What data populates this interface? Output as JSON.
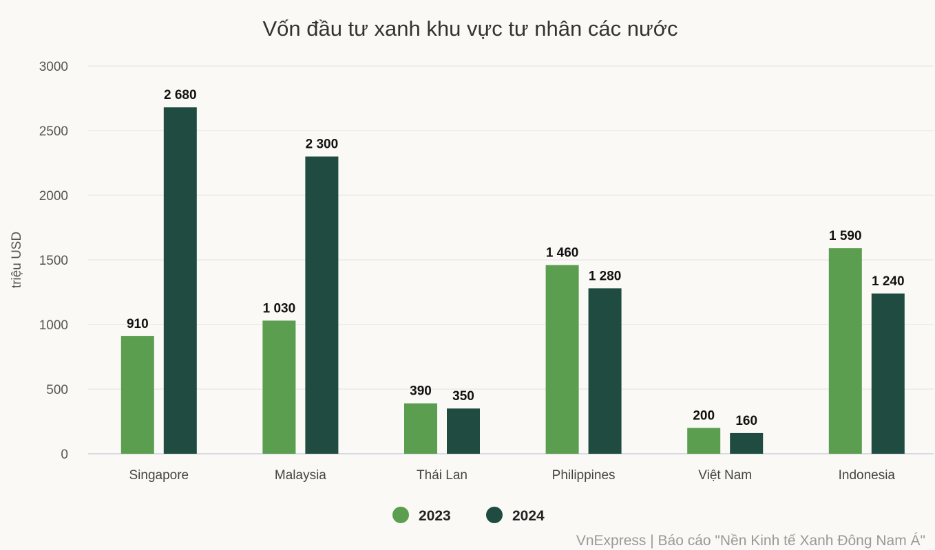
{
  "chart_data": {
    "type": "bar",
    "title": "Vốn đầu tư xanh khu vực tư nhân các nước",
    "ylabel": "triệu USD",
    "xlabel": "",
    "categories": [
      "Singapore",
      "Malaysia",
      "Thái Lan",
      "Philippines",
      "Việt Nam",
      "Indonesia"
    ],
    "series": [
      {
        "name": "2023",
        "color": "#5b9e50",
        "values": [
          910,
          1030,
          390,
          1460,
          200,
          1590
        ],
        "labels": [
          "910",
          "1 030",
          "390",
          "1 460",
          "200",
          "1 590"
        ]
      },
      {
        "name": "2024",
        "color": "#1f4b40",
        "values": [
          2680,
          2300,
          350,
          1280,
          160,
          1240
        ],
        "labels": [
          "2 680",
          "2 300",
          "350",
          "1 280",
          "160",
          "1 240"
        ]
      }
    ],
    "ylim": [
      0,
      3000
    ],
    "yticks": [
      "0",
      "500",
      "1000",
      "1500",
      "2000",
      "2500",
      "3000"
    ],
    "grid": true,
    "legend_position": "bottom-center",
    "source": "VnExpress | Báo cáo \"Nền Kinh tế Xanh Đông Nam Á\""
  }
}
